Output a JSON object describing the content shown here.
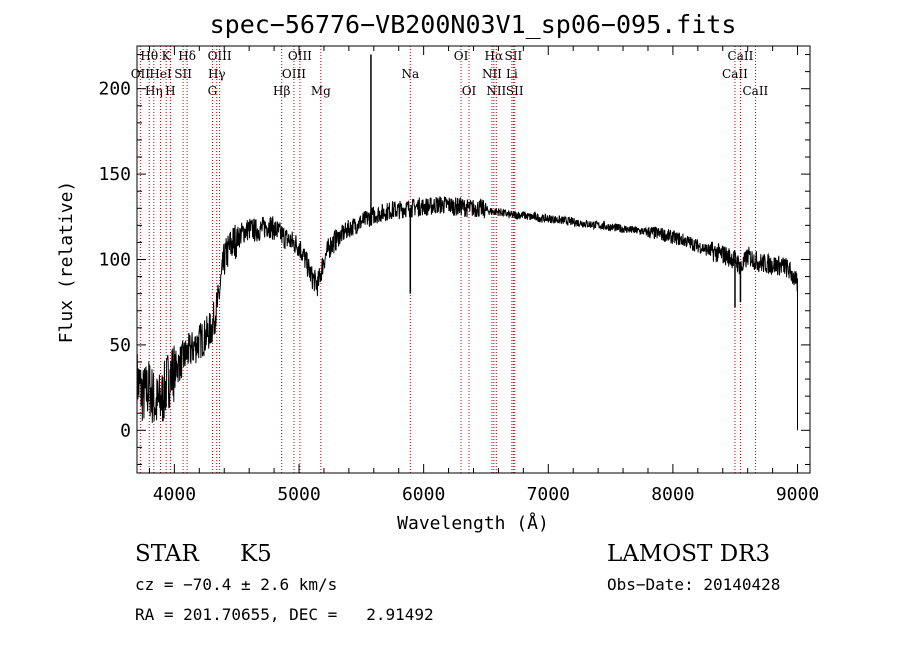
{
  "chart_data": {
    "type": "line",
    "title": "spec−56776−VB200N03V1_sp06−095.fits",
    "xlabel": "Wavelength (Å)",
    "ylabel": "Flux (relative)",
    "xlim": [
      3700,
      9100
    ],
    "ylim": [
      -25,
      225
    ],
    "xticks": [
      4000,
      5000,
      6000,
      7000,
      8000,
      9000
    ],
    "yticks": [
      0,
      50,
      100,
      150,
      200
    ],
    "series": [
      {
        "name": "flux",
        "x": [
          3700,
          3750,
          3800,
          3850,
          3900,
          3950,
          4000,
          4050,
          4100,
          4150,
          4200,
          4250,
          4300,
          4350,
          4400,
          4450,
          4500,
          4550,
          4600,
          4650,
          4700,
          4750,
          4800,
          4850,
          4900,
          4950,
          5000,
          5050,
          5100,
          5150,
          5200,
          5250,
          5300,
          5350,
          5400,
          5450,
          5500,
          5550,
          5600,
          5650,
          5700,
          5750,
          5800,
          5850,
          5900,
          5950,
          6000,
          6050,
          6100,
          6150,
          6200,
          6250,
          6300,
          6350,
          6400,
          6450,
          6500,
          6550,
          6600,
          6650,
          6700,
          6750,
          6800,
          6850,
          6900,
          6950,
          7000,
          7100,
          7200,
          7300,
          7400,
          7500,
          7600,
          7700,
          7800,
          7900,
          8000,
          8100,
          8200,
          8300,
          8400,
          8500,
          8550,
          8600,
          8650,
          8700,
          8800,
          8900,
          8950,
          9000
        ],
        "y": [
          30,
          20,
          25,
          15,
          18,
          30,
          35,
          40,
          45,
          48,
          52,
          55,
          60,
          75,
          100,
          108,
          112,
          116,
          118,
          117,
          118,
          120,
          118,
          115,
          112,
          110,
          108,
          100,
          90,
          85,
          100,
          108,
          112,
          115,
          118,
          120,
          122,
          124,
          126,
          127,
          128,
          129,
          129,
          130,
          130,
          131,
          131,
          131,
          132,
          132,
          132,
          131,
          131,
          130,
          130,
          130,
          129,
          128,
          128,
          127,
          126,
          126,
          126,
          125,
          125,
          124,
          124,
          123,
          122,
          121,
          120,
          119,
          118,
          117,
          116,
          115,
          113,
          111,
          108,
          105,
          103,
          100,
          95,
          102,
          100,
          98,
          97,
          96,
          92,
          85
        ]
      }
    ],
    "line_labels": [
      {
        "text": "Hθ",
        "x": 3798,
        "row": 0
      },
      {
        "text": "K",
        "x": 3934,
        "row": 0
      },
      {
        "text": "Hδ",
        "x": 4102,
        "row": 0
      },
      {
        "text": "OIII",
        "x": 4363,
        "row": 0
      },
      {
        "text": "OIII",
        "x": 5007,
        "row": 0
      },
      {
        "text": "OI",
        "x": 6300,
        "row": 0
      },
      {
        "text": "Hα",
        "x": 6563,
        "row": 0
      },
      {
        "text": "SII",
        "x": 6720,
        "row": 0
      },
      {
        "text": "CaII",
        "x": 8542,
        "row": 0
      },
      {
        "text": "OII",
        "x": 3727,
        "row": 1
      },
      {
        "text": "HeI",
        "x": 3889,
        "row": 1
      },
      {
        "text": "SII",
        "x": 4070,
        "row": 1
      },
      {
        "text": "Hγ",
        "x": 4340,
        "row": 1
      },
      {
        "text": "OIII",
        "x": 4959,
        "row": 1
      },
      {
        "text": "Na",
        "x": 5893,
        "row": 1
      },
      {
        "text": "NII",
        "x": 6548,
        "row": 1
      },
      {
        "text": "Li",
        "x": 6708,
        "row": 1
      },
      {
        "text": "CaII",
        "x": 8498,
        "row": 1
      },
      {
        "text": "Hη",
        "x": 3835,
        "row": 2
      },
      {
        "text": "H",
        "x": 3968,
        "row": 2
      },
      {
        "text": "G",
        "x": 4305,
        "row": 2
      },
      {
        "text": "Hβ",
        "x": 4861,
        "row": 2
      },
      {
        "text": "Mg",
        "x": 5175,
        "row": 2
      },
      {
        "text": "OI",
        "x": 6364,
        "row": 2
      },
      {
        "text": "NII",
        "x": 6583,
        "row": 2
      },
      {
        "text": "SII",
        "x": 6731,
        "row": 2
      },
      {
        "text": "CaII",
        "x": 8662,
        "row": 2
      }
    ],
    "spikes": [
      {
        "x": 5577,
        "y": 220
      },
      {
        "x": 5893,
        "y": 80
      },
      {
        "x": 8498,
        "y": 72
      },
      {
        "x": 8542,
        "y": 75
      }
    ]
  },
  "footer": {
    "object_class": "STAR",
    "subclass": "K5",
    "survey": "LAMOST DR3",
    "cz": "cz = −70.4 ± 2.6 km/s",
    "obs_date": "Obs−Date: 20140428",
    "coords": "RA = 201.70655, DEC =   2.91492"
  }
}
